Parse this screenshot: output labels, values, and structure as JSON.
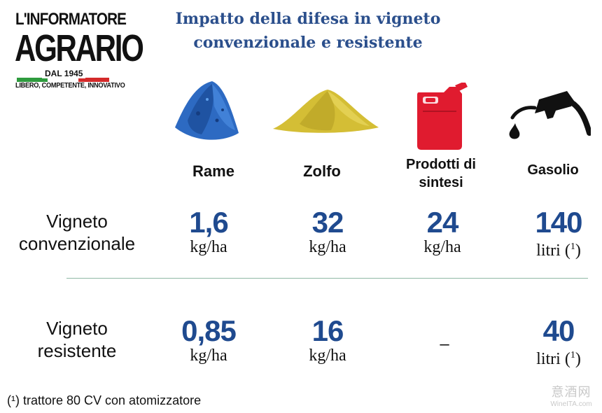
{
  "logo": {
    "line1": "L'INFORMATORE",
    "line2": "AGRARIO",
    "since": "DAL 1945",
    "tagline": "LIBERO, COMPETENTE, INNOVATIVO",
    "flag_colors": [
      "#2e9b3e",
      "#ffffff",
      "#d42a2a"
    ]
  },
  "title": "Impatto della difesa in vigneto convenzionale e resistente",
  "products": [
    {
      "name": "Rame",
      "icon": "copper-pile-icon",
      "color": "#2f6fc4"
    },
    {
      "name": "Zolfo",
      "icon": "sulfur-pile-icon",
      "color": "#d9c43a"
    },
    {
      "name": "Prodotti di sintesi",
      "icon": "jerrycan-icon",
      "color": "#e01b2f"
    },
    {
      "name": "Gasolio",
      "icon": "fuel-nozzle-icon",
      "color": "#111111"
    }
  ],
  "rows": [
    {
      "label": "Vigneto convenzionale",
      "values": [
        {
          "num": "1,6",
          "unit": "kg/ha"
        },
        {
          "num": "32",
          "unit": "kg/ha"
        },
        {
          "num": "24",
          "unit": "kg/ha"
        },
        {
          "num": "140",
          "unit": "litri (",
          "note": "1",
          "close": ")"
        }
      ]
    },
    {
      "label": "Vigneto resistente",
      "values": [
        {
          "num": "0,85",
          "unit": "kg/ha"
        },
        {
          "num": "16",
          "unit": "kg/ha"
        },
        {
          "dash": "–"
        },
        {
          "num": "40",
          "unit": "litri (",
          "note": "1",
          "close": ")"
        }
      ]
    }
  ],
  "footnote": "(¹) trattore 80 CV con atomizzatore",
  "watermark": {
    "cn": "意酒网",
    "en": "WineITA.com"
  },
  "accent_color": "#1f4a8f"
}
